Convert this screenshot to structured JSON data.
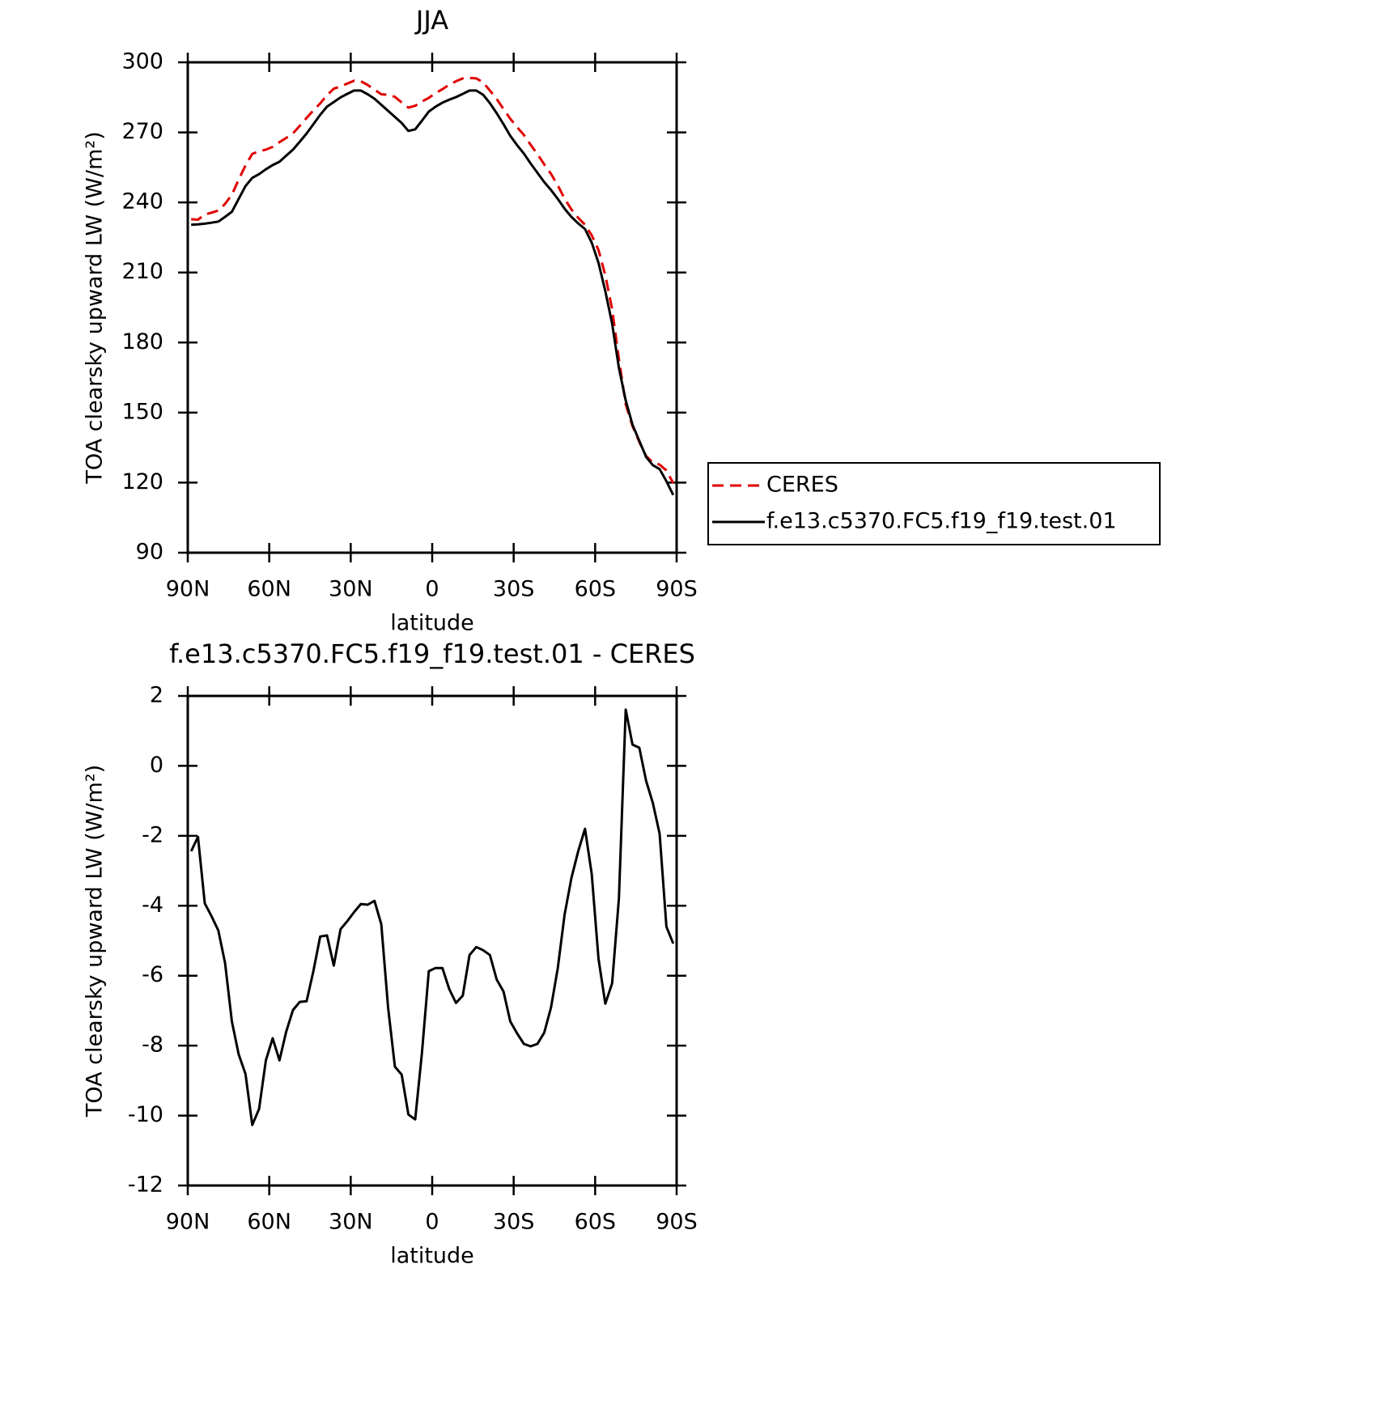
{
  "chart_data": [
    {
      "type": "line",
      "title": "JJA",
      "xlabel": "latitude",
      "ylabel": "TOA clearsky upward LW (W/m²)",
      "x": [
        88.75,
        86.25,
        83.75,
        81.25,
        78.75,
        76.25,
        73.75,
        71.25,
        68.75,
        66.25,
        63.75,
        61.25,
        58.75,
        56.25,
        53.75,
        51.25,
        48.75,
        46.25,
        43.75,
        41.25,
        38.75,
        36.25,
        33.75,
        31.25,
        28.75,
        26.25,
        23.75,
        21.25,
        18.75,
        16.25,
        13.75,
        11.25,
        8.75,
        6.25,
        3.75,
        1.25,
        -1.25,
        -3.75,
        -6.25,
        -8.75,
        -11.25,
        -13.75,
        -16.25,
        -18.75,
        -21.25,
        -23.75,
        -26.25,
        -28.75,
        -31.25,
        -33.75,
        -36.25,
        -38.75,
        -41.25,
        -43.75,
        -46.25,
        -48.75,
        -51.25,
        -53.75,
        -56.25,
        -58.75,
        -61.25,
        -63.75,
        -66.25,
        -68.75,
        -71.25,
        -73.75,
        -76.25,
        -78.75,
        -81.25,
        -83.75,
        -86.25,
        -88.75
      ],
      "series": [
        {
          "name": "CERES",
          "color": "#e00000",
          "dash": true,
          "values": [
            232.8,
            232.6,
            234.8,
            235.6,
            236.5,
            239.4,
            243.3,
            249.8,
            255.8,
            260.8,
            261.9,
            262.6,
            263.8,
            265.8,
            267.6,
            269.6,
            272.8,
            276.2,
            279.4,
            282.4,
            285.9,
            288.7,
            289.7,
            290.9,
            292.1,
            291.9,
            290.3,
            288.3,
            286.3,
            286.1,
            285.2,
            282.8,
            280.6,
            281.4,
            283.2,
            284.8,
            286.8,
            288.5,
            290.4,
            291.9,
            293.1,
            293.3,
            293.1,
            291.4,
            287.9,
            284.3,
            280.0,
            275.8,
            272.2,
            268.9,
            264.7,
            260.7,
            256.3,
            252.2,
            247.3,
            241.6,
            237.0,
            233.4,
            230.4,
            225.9,
            219.6,
            208.8,
            194.3,
            172.9,
            153.6,
            144.2,
            137.4,
            131.4,
            128.6,
            127.7,
            125.2,
            119.8
          ]
        },
        {
          "name": "f.e13.c5370.FC5.f19_f19.test.01",
          "color": "#000000",
          "dash": false,
          "values": [
            230.4,
            230.6,
            230.9,
            231.3,
            231.8,
            233.8,
            236.0,
            241.5,
            247.0,
            250.5,
            252.1,
            254.2,
            256.0,
            257.4,
            260.0,
            262.6,
            266.0,
            269.5,
            273.5,
            277.5,
            281.0,
            283.0,
            285.0,
            286.5,
            287.9,
            287.9,
            286.3,
            284.4,
            281.8,
            279.2,
            276.6,
            274.0,
            270.6,
            271.3,
            275.0,
            278.9,
            281.0,
            282.7,
            284.0,
            285.1,
            286.5,
            287.9,
            287.9,
            286.1,
            282.5,
            278.2,
            273.5,
            268.5,
            264.5,
            260.9,
            256.7,
            252.7,
            248.7,
            245.3,
            241.5,
            237.3,
            233.8,
            231.0,
            228.6,
            222.8,
            214.1,
            202.0,
            188.1,
            169.1,
            155.2,
            144.8,
            137.9,
            131.0,
            127.5,
            125.8,
            120.6,
            114.7
          ]
        }
      ],
      "xlim": [
        90,
        -90
      ],
      "xticks": [
        {
          "value": 90,
          "label": "90N"
        },
        {
          "value": 60,
          "label": "60N"
        },
        {
          "value": 30,
          "label": "30N"
        },
        0,
        {
          "value": -30,
          "label": "30S"
        },
        {
          "value": -60,
          "label": "60S"
        },
        {
          "value": -90,
          "label": "90S"
        }
      ],
      "ylim": [
        90,
        300
      ],
      "yticks": [
        90,
        120,
        150,
        180,
        210,
        240,
        270,
        300
      ],
      "legend": "outside right"
    },
    {
      "type": "line",
      "title": "f.e13.c5370.FC5.f19_f19.test.01 - CERES",
      "xlabel": "latitude",
      "ylabel": "TOA clearsky upward LW (W/m²)",
      "x": [
        88.75,
        86.25,
        83.75,
        81.25,
        78.75,
        76.25,
        73.75,
        71.25,
        68.75,
        66.25,
        63.75,
        61.25,
        58.75,
        56.25,
        53.75,
        51.25,
        48.75,
        46.25,
        43.75,
        41.25,
        38.75,
        36.25,
        33.75,
        31.25,
        28.75,
        26.25,
        23.75,
        21.25,
        18.75,
        16.25,
        13.75,
        11.25,
        8.75,
        6.25,
        3.75,
        1.25,
        -1.25,
        -3.75,
        -6.25,
        -8.75,
        -11.25,
        -13.75,
        -16.25,
        -18.75,
        -21.25,
        -23.75,
        -26.25,
        -28.75,
        -31.25,
        -33.75,
        -36.25,
        -38.75,
        -41.25,
        -43.75,
        -46.25,
        -48.75,
        -51.25,
        -53.75,
        -56.25,
        -58.75,
        -61.25,
        -63.75,
        -66.25,
        -68.75,
        -71.25,
        -73.75,
        -76.25,
        -78.75,
        -81.25,
        -83.75,
        -86.25,
        -88.75
      ],
      "series": [
        {
          "color": "#000000",
          "dash": false,
          "values": [
            -2.44,
            -2.03,
            -3.93,
            -4.3,
            -4.71,
            -5.64,
            -7.31,
            -8.25,
            -8.81,
            -10.27,
            -9.81,
            -8.42,
            -7.79,
            -8.42,
            -7.6,
            -6.98,
            -6.75,
            -6.73,
            -5.87,
            -4.88,
            -4.85,
            -5.71,
            -4.67,
            -4.44,
            -4.18,
            -3.95,
            -3.97,
            -3.86,
            -4.53,
            -6.91,
            -8.6,
            -8.83,
            -9.97,
            -10.11,
            -8.19,
            -5.87,
            -5.78,
            -5.78,
            -6.38,
            -6.78,
            -6.57,
            -5.41,
            -5.18,
            -5.27,
            -5.41,
            -6.11,
            -6.45,
            -7.31,
            -7.65,
            -7.95,
            -8.02,
            -7.95,
            -7.63,
            -6.91,
            -5.78,
            -4.25,
            -3.21,
            -2.44,
            -1.8,
            -3.09,
            -5.52,
            -6.8,
            -6.22,
            -3.79,
            1.61,
            0.61,
            0.52,
            -0.43,
            -1.06,
            -1.94,
            -4.6,
            -5.08
          ]
        }
      ],
      "xlim": [
        90,
        -90
      ],
      "xticks": [
        {
          "value": 90,
          "label": "90N"
        },
        {
          "value": 60,
          "label": "60N"
        },
        {
          "value": 30,
          "label": "30N"
        },
        0,
        {
          "value": -30,
          "label": "30S"
        },
        {
          "value": -60,
          "label": "60S"
        },
        {
          "value": -90,
          "label": "90S"
        }
      ],
      "ylim": [
        -12,
        2
      ],
      "yticks": [
        -12,
        -10,
        -8,
        -6,
        -4,
        -2,
        0,
        2
      ]
    }
  ]
}
